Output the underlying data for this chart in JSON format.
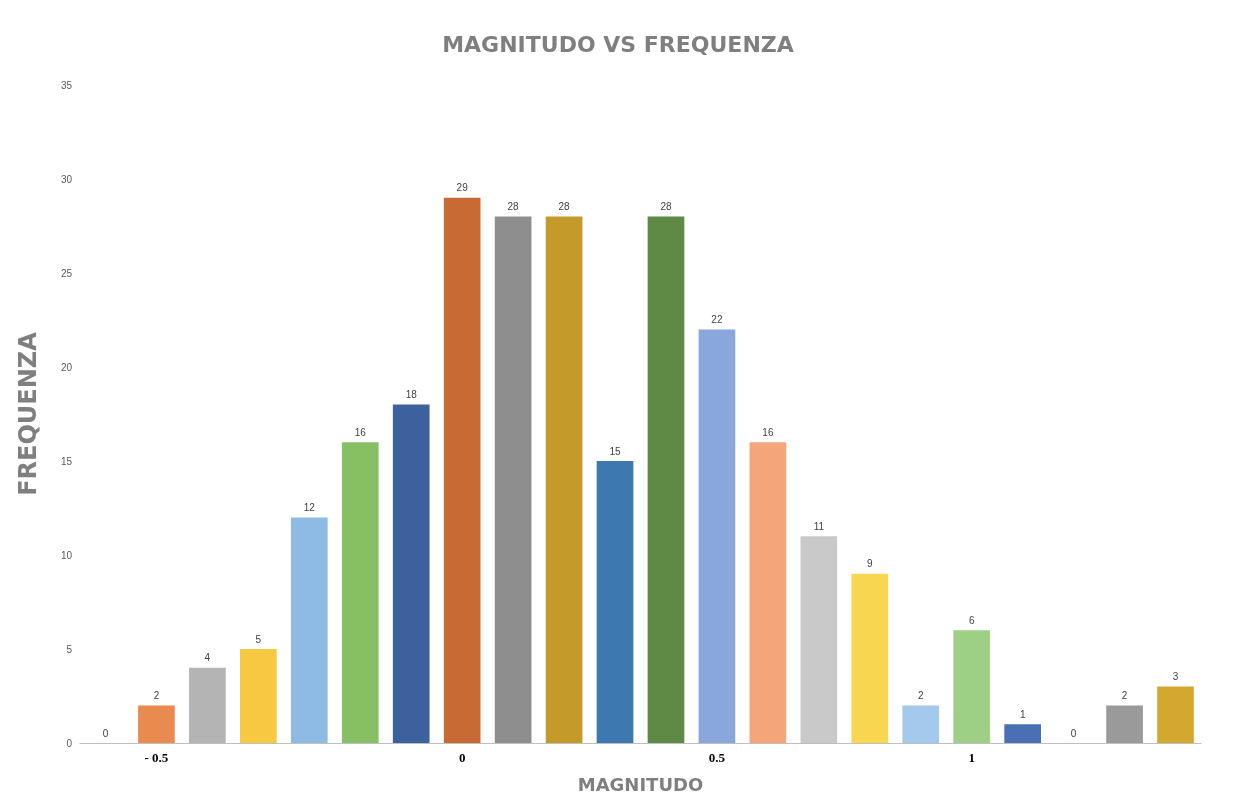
{
  "chart_data": {
    "type": "bar",
    "title": "MAGNITUDO VS FREQUENZA",
    "xlabel": "MAGNITUDO",
    "ylabel": "FREQUENZA",
    "categories": [
      null,
      "- 0.5",
      null,
      null,
      null,
      null,
      null,
      "0",
      null,
      null,
      null,
      null,
      "0.5",
      null,
      null,
      null,
      null,
      "1",
      null,
      null,
      null,
      null
    ],
    "values": [
      0,
      2,
      4,
      5,
      12,
      16,
      18,
      29,
      28,
      28,
      15,
      28,
      22,
      16,
      11,
      9,
      2,
      6,
      1,
      0,
      2,
      3
    ],
    "colors": [
      "#5b9bd5",
      "#e98a4f",
      "#b4b4b4",
      "#f7c842",
      "#8dbbe4",
      "#86c062",
      "#3c619c",
      "#c86a33",
      "#8e8e8e",
      "#c49a2a",
      "#3e78b0",
      "#5e8a45",
      "#8aa7dc",
      "#f4a57a",
      "#c9c9c9",
      "#f8d650",
      "#a3c9ec",
      "#9dcf85",
      "#4a6fb4",
      "#8a6a5a",
      "#9a9a9a",
      "#d3a82e"
    ],
    "ylim": [
      0,
      35
    ],
    "yticks": [
      0,
      5,
      10,
      15,
      20,
      25,
      30,
      35
    ],
    "data_labels": true,
    "grid": false
  }
}
